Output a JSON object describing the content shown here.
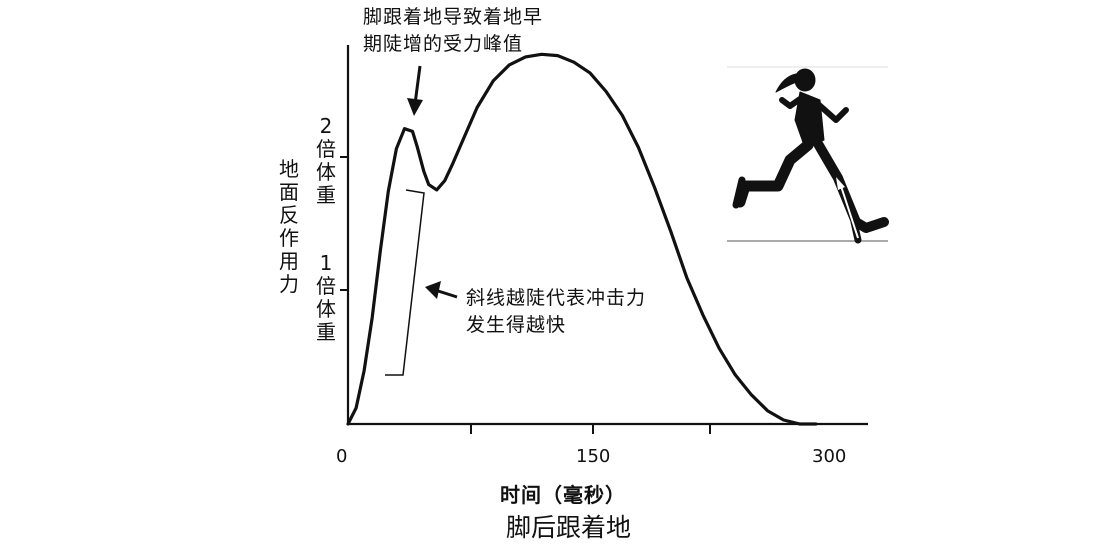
{
  "chart_data": {
    "type": "line",
    "title": "",
    "xlabel": "时间（毫秒）",
    "ylabel": "地面反作用力",
    "x_ticks": [
      "0",
      "150",
      "300"
    ],
    "y_ticks": [
      {
        "value": 1,
        "label": "1倍体重"
      },
      {
        "value": 2,
        "label": "2倍体重"
      }
    ],
    "xlim": [
      0,
      320
    ],
    "ylim": [
      0,
      2.8
    ],
    "grid": false,
    "series": [
      {
        "x": [
          0,
          5,
          10,
          15,
          20,
          25,
          30,
          35,
          40,
          43,
          47,
          50,
          55,
          60,
          65,
          70,
          75,
          80,
          90,
          100,
          110,
          120,
          130,
          140,
          150,
          160,
          170,
          180,
          190,
          200,
          210,
          220,
          230,
          240,
          250,
          260,
          270,
          280,
          290
        ],
        "y": [
          0,
          0.12,
          0.4,
          0.8,
          1.3,
          1.75,
          2.07,
          2.22,
          2.2,
          2.08,
          1.9,
          1.8,
          1.76,
          1.83,
          1.96,
          2.1,
          2.24,
          2.38,
          2.58,
          2.7,
          2.76,
          2.78,
          2.77,
          2.72,
          2.64,
          2.5,
          2.32,
          2.08,
          1.78,
          1.45,
          1.1,
          0.82,
          0.57,
          0.37,
          0.22,
          0.1,
          0.03,
          0.0,
          0.0
        ]
      }
    ]
  },
  "annotations": {
    "peak_line1": "脚跟着地导致着地早",
    "peak_line2": "期陡增的受力峰值",
    "slope_line1": "斜线越陡代表冲击力",
    "slope_line2": "发生得越快"
  },
  "caption": "脚后跟着地",
  "figure": {
    "name": "runner-silhouette",
    "color": "#111111"
  }
}
